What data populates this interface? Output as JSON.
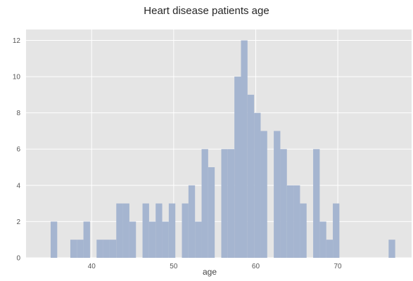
{
  "chart_data": {
    "type": "bar",
    "title": "Heart disease patients age",
    "xlabel": "age",
    "ylabel": "",
    "xlim": [
      32,
      79
    ],
    "ylim": [
      0,
      12.6
    ],
    "grid": true,
    "x_ticks": [
      40,
      50,
      60,
      70
    ],
    "y_ticks": [
      0,
      2,
      4,
      6,
      8,
      10,
      12
    ],
    "bins": [
      {
        "start": 35.0,
        "end": 35.8,
        "value": 2
      },
      {
        "start": 37.4,
        "end": 38.2,
        "value": 1
      },
      {
        "start": 38.2,
        "end": 39.0,
        "value": 1
      },
      {
        "start": 39.0,
        "end": 39.8,
        "value": 2
      },
      {
        "start": 40.6,
        "end": 41.4,
        "value": 1
      },
      {
        "start": 41.4,
        "end": 42.2,
        "value": 1
      },
      {
        "start": 42.2,
        "end": 43.0,
        "value": 1
      },
      {
        "start": 43.0,
        "end": 43.8,
        "value": 3
      },
      {
        "start": 43.8,
        "end": 44.6,
        "value": 3
      },
      {
        "start": 44.6,
        "end": 45.4,
        "value": 2
      },
      {
        "start": 46.2,
        "end": 47.0,
        "value": 3
      },
      {
        "start": 47.0,
        "end": 47.8,
        "value": 2
      },
      {
        "start": 47.8,
        "end": 48.6,
        "value": 3
      },
      {
        "start": 48.6,
        "end": 49.4,
        "value": 2
      },
      {
        "start": 49.4,
        "end": 50.2,
        "value": 3
      },
      {
        "start": 51.0,
        "end": 51.8,
        "value": 3
      },
      {
        "start": 51.8,
        "end": 52.6,
        "value": 4
      },
      {
        "start": 52.6,
        "end": 53.4,
        "value": 2
      },
      {
        "start": 53.4,
        "end": 54.2,
        "value": 6
      },
      {
        "start": 54.2,
        "end": 55.0,
        "value": 5
      },
      {
        "start": 55.8,
        "end": 56.6,
        "value": 6
      },
      {
        "start": 56.6,
        "end": 57.4,
        "value": 6
      },
      {
        "start": 57.4,
        "end": 58.2,
        "value": 10
      },
      {
        "start": 58.2,
        "end": 59.0,
        "value": 12
      },
      {
        "start": 59.0,
        "end": 59.8,
        "value": 9
      },
      {
        "start": 59.8,
        "end": 60.6,
        "value": 8
      },
      {
        "start": 60.6,
        "end": 61.4,
        "value": 7
      },
      {
        "start": 62.2,
        "end": 63.0,
        "value": 7
      },
      {
        "start": 63.0,
        "end": 63.8,
        "value": 6
      },
      {
        "start": 63.8,
        "end": 64.6,
        "value": 4
      },
      {
        "start": 64.6,
        "end": 65.4,
        "value": 4
      },
      {
        "start": 65.4,
        "end": 66.2,
        "value": 3
      },
      {
        "start": 67.0,
        "end": 67.8,
        "value": 6
      },
      {
        "start": 67.8,
        "end": 68.6,
        "value": 2
      },
      {
        "start": 68.6,
        "end": 69.4,
        "value": 1
      },
      {
        "start": 69.4,
        "end": 70.2,
        "value": 3
      },
      {
        "start": 76.2,
        "end": 77.0,
        "value": 1
      }
    ],
    "bar_color": "#a5b5d0",
    "plot_background": "#e5e5e5",
    "grid_color": "#ffffff"
  }
}
